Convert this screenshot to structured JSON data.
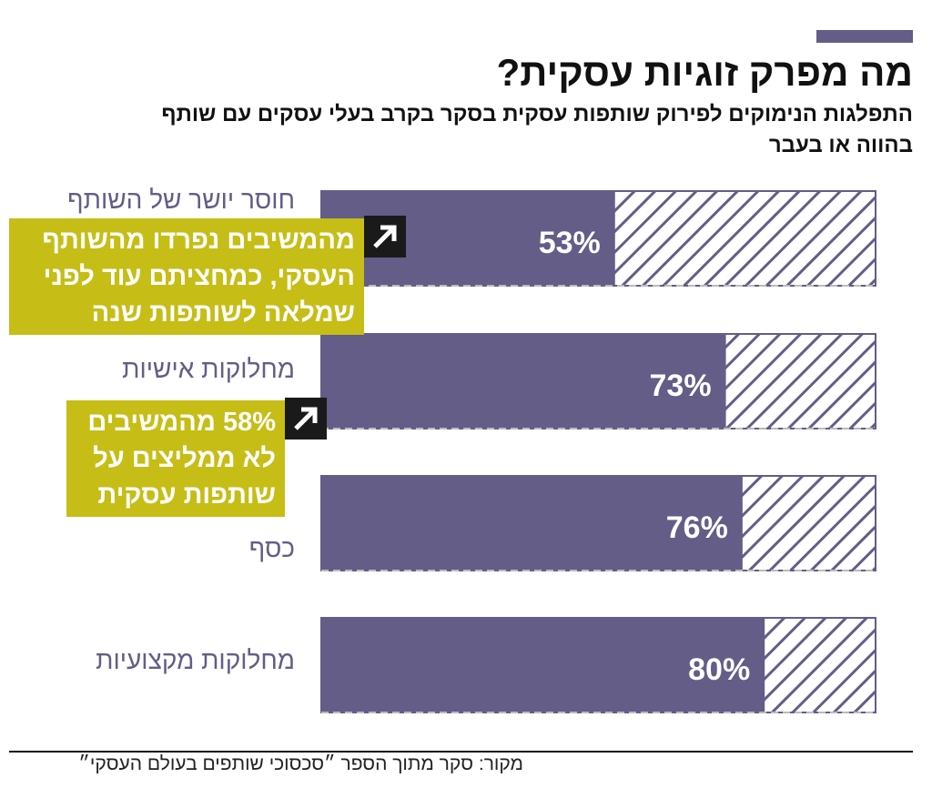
{
  "chart_data": {
    "type": "bar",
    "title": "מה מפרק זוגיות עסקית?",
    "subtitle": [
      "התפלגות הנימוקים לפירוק שותפות עסקית בסקר בקרב בעלי עסקים עם שותף",
      "בהווה או בעבר"
    ],
    "categories": [
      "חוסר יושר של השותף",
      "מחלוקות אישיות",
      "כסף",
      "מחלוקות מקצועיות"
    ],
    "values": [
      53,
      73,
      76,
      80
    ],
    "value_labels": [
      "53%",
      "73%",
      "76%",
      "80%"
    ],
    "color": "#635d87",
    "xlim": [
      0,
      100
    ],
    "annotations": [
      [
        "מהמשיבים נפרדו מהשותף",
        "העסקי, כמחציתם עוד לפני",
        "שמלאה לשותפות שנה"
      ],
      [
        "58% מהמשיבים",
        "לא ממליצים על",
        "שותפות עסקית"
      ]
    ],
    "source": "מקור: סקר מתוך הספר ״סכסוכי שותפים בעולם העסקי״"
  }
}
